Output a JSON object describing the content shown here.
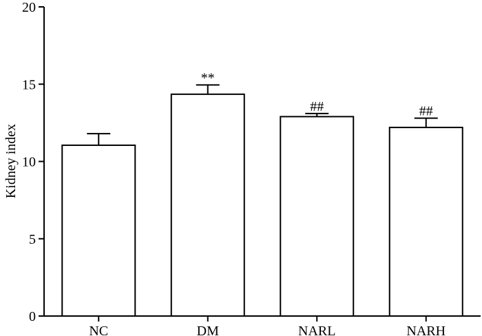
{
  "chart_data": {
    "type": "bar",
    "categories": [
      "NC",
      "DM",
      "NARL",
      "NARH"
    ],
    "values": [
      11.05,
      14.35,
      12.9,
      12.2
    ],
    "error": [
      0.75,
      0.6,
      0.2,
      0.6
    ],
    "annotations": [
      "",
      "**",
      "##",
      "##"
    ],
    "xlabel": "",
    "ylabel": "Kidney index",
    "ylim": [
      0,
      20
    ],
    "yticks": [
      0,
      5,
      10,
      15,
      20
    ],
    "grid": false,
    "bar_fill": "#ffffff",
    "bar_stroke": "#000000"
  }
}
